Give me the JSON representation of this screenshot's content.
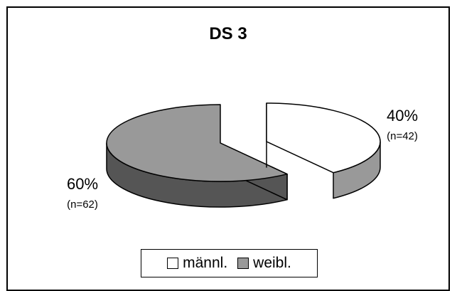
{
  "chart_data": {
    "type": "pie",
    "title": "DS 3",
    "slices": [
      {
        "label": "männl.",
        "value": 40,
        "percent_label": "40%",
        "n_label": "(n=42)",
        "color": "#ffffff",
        "side_color": "#999999"
      },
      {
        "label": "weibl.",
        "value": 60,
        "percent_label": "60%",
        "n_label": "(n=62)",
        "color": "#999999",
        "side_color": "#555555"
      }
    ],
    "legend": {
      "placement": "bottom"
    },
    "style": {
      "three_d": true,
      "exploded": true
    }
  }
}
